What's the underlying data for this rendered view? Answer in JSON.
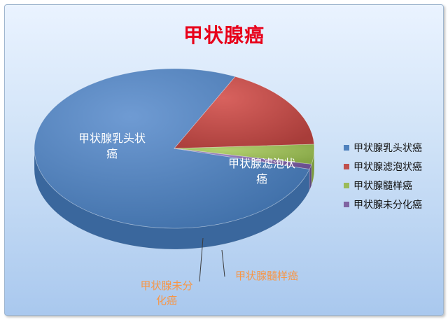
{
  "chart_data": {
    "type": "pie",
    "title": "甲状腺癌",
    "categories": [
      "甲状腺乳头状癌",
      "甲状腺滤泡状癌",
      "甲状腺髓样癌",
      "甲状腺未分化癌"
    ],
    "values": [
      78,
      17,
      4,
      1
    ],
    "colors": [
      "#4f81bd",
      "#c0504d",
      "#9bbb59",
      "#8064a2"
    ],
    "data_labels": {
      "papillary": [
        "甲状腺乳头状",
        "癌"
      ],
      "follicular": [
        "甲状腺滤泡状",
        "癌"
      ],
      "medullary": [
        "甲状腺髓样癌"
      ],
      "anaplastic": [
        "甲状腺未分",
        "化癌"
      ]
    },
    "label_colors": {
      "inside": "#ffffff",
      "outside": "#f79646"
    },
    "legend_position": "right",
    "style": "3d-pie"
  }
}
